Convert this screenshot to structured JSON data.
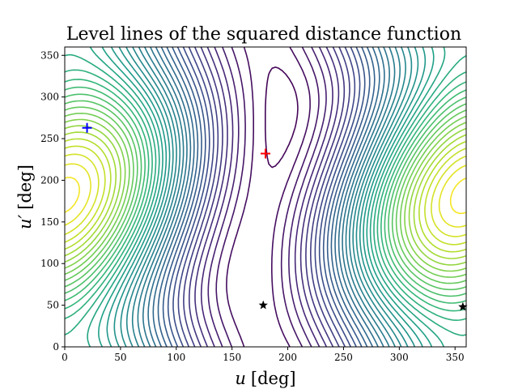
{
  "chart_data": {
    "type": "contour",
    "title": "Level lines of the squared distance function",
    "xlabel_var": "u",
    "xlabel_unit": "[deg]",
    "ylabel_var": "u′",
    "ylabel_unit": "[deg]",
    "xlim": [
      0,
      360
    ],
    "ylim": [
      0,
      360
    ],
    "xticks": [
      0,
      50,
      100,
      150,
      200,
      250,
      300,
      350
    ],
    "yticks": [
      0,
      50,
      100,
      150,
      200,
      250,
      300,
      350
    ],
    "grid": false,
    "colormap": "viridis",
    "markers": [
      {
        "name": "maximum",
        "shape": "plus",
        "color": "#ff0000",
        "x": 180,
        "y": 232
      },
      {
        "name": "initial-point",
        "shape": "plus",
        "color": "#0000ff",
        "x": 20,
        "y": 263
      },
      {
        "name": "minimum-1",
        "shape": "star",
        "color": "#000000",
        "x": 178,
        "y": 50
      },
      {
        "name": "minimum-2",
        "shape": "star",
        "color": "#000000",
        "x": 357,
        "y": 48
      }
    ]
  }
}
